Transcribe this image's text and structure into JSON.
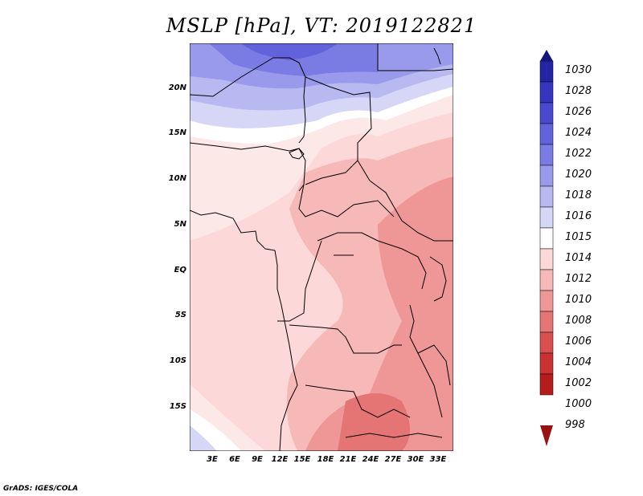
{
  "title": "MSLP [hPa], VT: 2019122821",
  "lat_labels": [
    "20N",
    "15N",
    "10N",
    "5N",
    "EQ",
    "5S",
    "10S",
    "15S"
  ],
  "lon_labels": [
    "3E",
    "6E",
    "9E",
    "12E",
    "15E",
    "18E",
    "21E",
    "24E",
    "27E",
    "30E",
    "33E"
  ],
  "colorbar": {
    "levels": [
      "1030",
      "1028",
      "1026",
      "1024",
      "1022",
      "1020",
      "1018",
      "1016",
      "1015",
      "1014",
      "1012",
      "1010",
      "1008",
      "1006",
      "1004",
      "1002",
      "1000",
      "998"
    ],
    "colors": [
      "#15157a",
      "#2424a6",
      "#3535bf",
      "#4a4ad0",
      "#6262dc",
      "#7b7be4",
      "#9a9aec",
      "#b9b9f2",
      "#d6d6f7",
      "#ffffff",
      "#fcd8d8",
      "#f7b8b8",
      "#ef9797",
      "#e57474",
      "#da5050",
      "#cb3232",
      "#b51d1d",
      "#991212"
    ]
  },
  "credit": "GrADS: IGES/COLA"
}
